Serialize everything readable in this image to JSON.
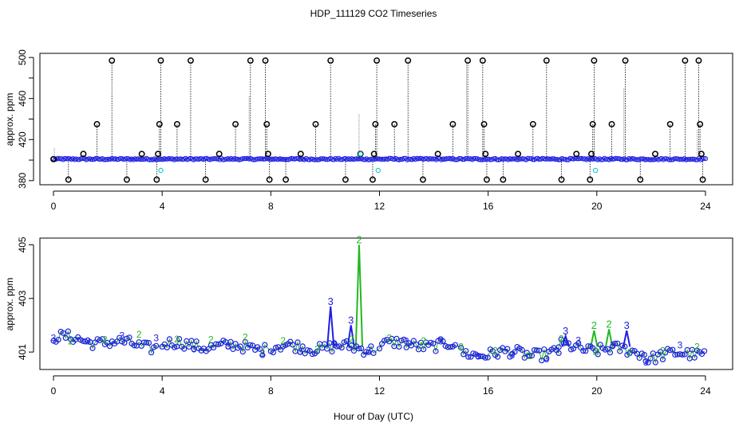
{
  "chart_data": [
    {
      "type": "scatter",
      "title": "HDP_111129  CO2 Timeseries",
      "xlabel": "",
      "ylabel": "approx. ppm",
      "xlim": [
        -0.5,
        25
      ],
      "ylim": [
        376,
        504
      ],
      "x_ticks": [
        0,
        4,
        8,
        12,
        16,
        20,
        24
      ],
      "y_ticks": [
        380,
        420,
        460,
        500
      ],
      "y_tick_labels": [
        "380",
        "420",
        "460",
        "500"
      ],
      "baseline": 401,
      "spikes": [
        {
          "x": 0.0,
          "y": 401
        },
        {
          "x": 0.55,
          "y": 381
        },
        {
          "x": 1.1,
          "y": 406
        },
        {
          "x": 1.6,
          "y": 435
        },
        {
          "x": 2.15,
          "y": 497
        },
        {
          "x": 2.7,
          "y": 381
        },
        {
          "x": 3.25,
          "y": 406
        },
        {
          "x": 3.8,
          "y": 381
        },
        {
          "x": 3.85,
          "y": 406
        },
        {
          "x": 3.9,
          "y": 435
        },
        {
          "x": 3.95,
          "y": 497
        },
        {
          "x": 4.55,
          "y": 435
        },
        {
          "x": 5.05,
          "y": 497
        },
        {
          "x": 5.6,
          "y": 381
        },
        {
          "x": 6.1,
          "y": 406
        },
        {
          "x": 6.7,
          "y": 435
        },
        {
          "x": 7.25,
          "y": 497
        },
        {
          "x": 7.8,
          "y": 497
        },
        {
          "x": 7.85,
          "y": 435
        },
        {
          "x": 7.9,
          "y": 406
        },
        {
          "x": 7.95,
          "y": 381
        },
        {
          "x": 8.55,
          "y": 381
        },
        {
          "x": 9.1,
          "y": 406
        },
        {
          "x": 9.65,
          "y": 435
        },
        {
          "x": 10.2,
          "y": 497
        },
        {
          "x": 10.75,
          "y": 381
        },
        {
          "x": 11.3,
          "y": 406
        },
        {
          "x": 11.75,
          "y": 381
        },
        {
          "x": 11.8,
          "y": 406
        },
        {
          "x": 11.85,
          "y": 435
        },
        {
          "x": 11.9,
          "y": 497
        },
        {
          "x": 12.55,
          "y": 435
        },
        {
          "x": 13.05,
          "y": 497
        },
        {
          "x": 13.6,
          "y": 381
        },
        {
          "x": 14.15,
          "y": 406
        },
        {
          "x": 14.7,
          "y": 435
        },
        {
          "x": 15.25,
          "y": 497
        },
        {
          "x": 15.8,
          "y": 497
        },
        {
          "x": 15.85,
          "y": 435
        },
        {
          "x": 15.9,
          "y": 406
        },
        {
          "x": 15.95,
          "y": 381
        },
        {
          "x": 16.55,
          "y": 381
        },
        {
          "x": 17.1,
          "y": 406
        },
        {
          "x": 17.65,
          "y": 435
        },
        {
          "x": 18.15,
          "y": 497
        },
        {
          "x": 18.7,
          "y": 381
        },
        {
          "x": 19.25,
          "y": 406
        },
        {
          "x": 19.75,
          "y": 381
        },
        {
          "x": 19.8,
          "y": 406
        },
        {
          "x": 19.85,
          "y": 435
        },
        {
          "x": 19.9,
          "y": 497
        },
        {
          "x": 20.55,
          "y": 435
        },
        {
          "x": 21.05,
          "y": 497
        },
        {
          "x": 21.6,
          "y": 381
        },
        {
          "x": 22.15,
          "y": 406
        },
        {
          "x": 22.7,
          "y": 435
        },
        {
          "x": 23.25,
          "y": 497
        },
        {
          "x": 23.75,
          "y": 497
        },
        {
          "x": 23.8,
          "y": 435
        },
        {
          "x": 23.85,
          "y": 406
        },
        {
          "x": 23.9,
          "y": 381
        }
      ],
      "cyan_points": [
        {
          "x": 3.95,
          "y": 390
        },
        {
          "x": 11.3,
          "y": 406
        },
        {
          "x": 11.95,
          "y": 390
        },
        {
          "x": 19.95,
          "y": 390
        }
      ],
      "colors": {
        "outlier": "#000000",
        "main": "#1f1fe0",
        "cyan": "#22c8d8",
        "green": "#22b822"
      }
    },
    {
      "type": "scatter",
      "xlabel": "Hour of Day (UTC)",
      "ylabel": "approx. ppm",
      "xlim": [
        -0.5,
        25
      ],
      "ylim": [
        400.35,
        405.25
      ],
      "x_ticks": [
        0,
        4,
        8,
        12,
        16,
        20,
        24
      ],
      "y_ticks": [
        401,
        403,
        405
      ],
      "y_tick_labels": [
        "401",
        "403",
        "405"
      ],
      "segments": [
        {
          "x0": 0.0,
          "x1": 3.8,
          "y0": 401.55,
          "y1": 401.2
        },
        {
          "x0": 4.0,
          "x1": 7.8,
          "y0": 401.3,
          "y1": 401.15
        },
        {
          "x0": 8.0,
          "x1": 11.8,
          "y0": 401.2,
          "y1": 401.15
        },
        {
          "x0": 12.0,
          "x1": 14.8,
          "y0": 401.3,
          "y1": 401.25
        },
        {
          "x0": 15.0,
          "x1": 18.6,
          "y0": 400.95,
          "y1": 400.95
        },
        {
          "x0": 18.6,
          "x1": 21.8,
          "y0": 401.2,
          "y1": 401.0
        },
        {
          "x0": 21.8,
          "x1": 24.0,
          "y0": 400.8,
          "y1": 401.0
        }
      ],
      "peaks": [
        {
          "x": 10.2,
          "y": 402.7,
          "label": "3"
        },
        {
          "x": 10.95,
          "y": 402.0,
          "label": "3"
        },
        {
          "x": 11.25,
          "y": 405.0,
          "label": "2"
        },
        {
          "x": 19.9,
          "y": 401.8,
          "label": "2"
        },
        {
          "x": 20.45,
          "y": 401.85,
          "label": "2"
        },
        {
          "x": 21.1,
          "y": 401.8,
          "label": "3"
        },
        {
          "x": 18.85,
          "y": 401.6,
          "label": "3"
        }
      ],
      "digit_labels": [
        "2",
        "3"
      ],
      "colors": {
        "main": "#1f1fe0",
        "green": "#22b822"
      }
    }
  ]
}
